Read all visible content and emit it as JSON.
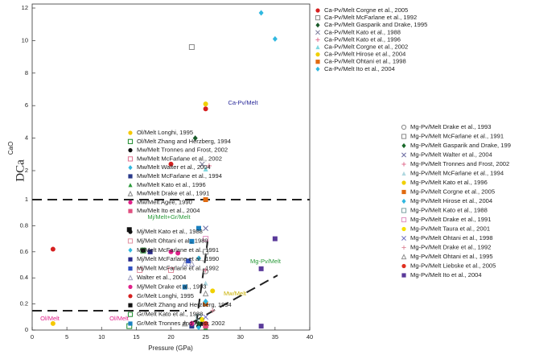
{
  "chart_data": {
    "type": "scatter",
    "x_label": "Pressure (GPa)",
    "y_label": "DCa",
    "y_label_sub": "CaO",
    "xlim": [
      0,
      40
    ],
    "xticks": [
      0,
      5,
      10,
      15,
      20,
      25,
      30,
      35,
      40
    ],
    "ylim": [
      0,
      12
    ],
    "yticks": [
      0,
      0.2,
      0.4,
      0.6,
      0.8,
      1,
      2,
      4,
      6,
      8,
      10,
      12
    ],
    "annotations": [
      "Ca-Pv/Melt",
      "Mj/Melt+Gr/Melt",
      "Mg-Pv/Melt",
      "Ol/Melt",
      "Ol/Melt",
      "Mw/Melt"
    ],
    "series": [
      {
        "name": "Ca-Pv/Melt Corgne et al., 2005",
        "color": "#d62020",
        "marker": "circle",
        "x": [
          20,
          25
        ],
        "values": [
          2.4,
          5.8
        ]
      },
      {
        "name": "Ca-Pv/Melt McFarlane et al., 1992",
        "color": "#888888",
        "marker": "open-square",
        "x": [
          23
        ],
        "values": [
          9.6
        ]
      },
      {
        "name": "Ca-Pv/Melt Gasparik and Drake, 1995",
        "color": "#1a5a2a",
        "marker": "diamond",
        "x": [
          23.5
        ],
        "values": [
          4.0
        ]
      },
      {
        "name": "Ca-Pv/Melt Kato et al., 1988",
        "color": "#7a7a9a",
        "marker": "x",
        "x": [
          24.5
        ],
        "values": [
          2.4
        ]
      },
      {
        "name": "Ca-Pv/Melt Kato et al., 1996",
        "color": "#e07090",
        "marker": "plus",
        "x": [
          25.5
        ],
        "values": [
          2.3
        ]
      },
      {
        "name": "Ca-Pv/Melt Corgne et al., 2002",
        "color": "#7fd8e0",
        "marker": "triangle",
        "x": [
          25
        ],
        "values": [
          2.1
        ]
      },
      {
        "name": "Ca-Pv/Melt Hirose et al., 2004",
        "color": "#f0d000",
        "marker": "circle",
        "x": [
          25
        ],
        "values": [
          6.1
        ]
      },
      {
        "name": "Ca-Pv/Melt Ohtani et al., 1998",
        "color": "#e06a10",
        "marker": "square",
        "x": [
          25
        ],
        "values": [
          1.0
        ]
      },
      {
        "name": "Ca-Pv/Melt Ito et al., 2004",
        "color": "#30b8e0",
        "marker": "diamond",
        "x": [
          33,
          35
        ],
        "values": [
          11.7,
          10.1
        ]
      },
      {
        "name": "Ol/Melt Longhi, 1995",
        "color": "#f5c800",
        "marker": "circle",
        "x": [
          3
        ],
        "values": [
          0.05
        ]
      },
      {
        "name": "Ol/Melt Zhang and Herzberg, 1994",
        "color": "#1a8a2a",
        "marker": "open-square",
        "x": [
          14
        ],
        "values": [
          0.03
        ]
      },
      {
        "name": "Mw/Melt Tronnes and Frost, 2002",
        "color": "#111111",
        "marker": "circle",
        "x": [
          23,
          24,
          24.5
        ],
        "values": [
          0.04,
          0.03,
          0.05
        ]
      },
      {
        "name": "Mw/Melt McFarlane et al., 2002",
        "color": "#e07090",
        "marker": "open-square",
        "x": [
          25
        ],
        "values": [
          0.04
        ]
      },
      {
        "name": "Mw/Melt Walter et al., 2004",
        "color": "#30b8e0",
        "marker": "diamond",
        "x": [
          24
        ],
        "values": [
          0.02
        ]
      },
      {
        "name": "Mw/Melt McFarlane et al., 1994",
        "color": "#2a3a8a",
        "marker": "square",
        "x": [
          23
        ],
        "values": [
          0.03
        ]
      },
      {
        "name": "Mw/Melt Kato et al., 1996",
        "color": "#2a9a3a",
        "marker": "triangle",
        "x": [
          25
        ],
        "values": [
          0.02
        ]
      },
      {
        "name": "Mw/Melt Drake et al., 1991",
        "color": "#888888",
        "marker": "open-triangle",
        "x": [
          22
        ],
        "values": [
          0.05
        ]
      },
      {
        "name": "Mw/Melt Agee, 1990",
        "color": "#e0208a",
        "marker": "circle",
        "x": [
          23
        ],
        "values": [
          0.05
        ]
      },
      {
        "name": "Mw/Melt Ito et al., 2004",
        "color": "#e05080",
        "marker": "square",
        "x": [
          25
        ],
        "values": [
          0.03
        ]
      },
      {
        "name": "Mj/Melt Kato et al., 1988",
        "color": "#111111",
        "marker": "circle",
        "x": [
          16
        ],
        "values": [
          0.61
        ]
      },
      {
        "name": "Mj/Melt Ohtani et al., 1989",
        "color": "#e090a0",
        "marker": "open-square",
        "x": [
          15.5,
          20
        ],
        "values": [
          0.46,
          0.46
        ]
      },
      {
        "name": "Mj/Melt McFarlane et al., 1991",
        "color": "#30b8e0",
        "marker": "diamond",
        "x": [
          24
        ],
        "values": [
          0.55
        ]
      },
      {
        "name": "Mj/Melt McFarlane et al., 1990",
        "color": "#2a2a8a",
        "marker": "square",
        "x": [
          17
        ],
        "values": [
          0.6
        ]
      },
      {
        "name": "Mj/Melt McFarlane et al., 1992",
        "color": "#3050c0",
        "marker": "square",
        "x": [
          22.5
        ],
        "values": [
          0.53
        ]
      },
      {
        "name": "Walter et al., 2004",
        "color": "#a0a0c0",
        "marker": "open-triangle",
        "x": [
          22,
          23
        ],
        "values": [
          0.51,
          0.51
        ]
      },
      {
        "name": "Mj/Melt Drake et al., 1993",
        "color": "#e0208a",
        "marker": "circle",
        "x": [
          20,
          21
        ],
        "values": [
          0.6,
          0.59
        ]
      },
      {
        "name": "Gr/Melt Longhi, 1995",
        "color": "#d62020",
        "marker": "circle",
        "x": [
          3
        ],
        "values": [
          0.62
        ]
      },
      {
        "name": "Gr/Melt Zhang and Herzberg, 1994",
        "color": "#111111",
        "marker": "square",
        "x": [
          14
        ],
        "values": [
          0.77
        ]
      },
      {
        "name": "Gr/Melt Kato et al., 1988",
        "color": "#1a8a2a",
        "marker": "open-square",
        "x": [
          16
        ],
        "values": [
          0.61
        ]
      },
      {
        "name": "Gr/Melt Tronnes and Frost, 2002",
        "color": "#1a80c0",
        "marker": "square",
        "x": [
          22,
          23,
          24
        ],
        "values": [
          0.33,
          0.68,
          0.78
        ]
      },
      {
        "name": "Mg-Pv/Melt Drake et al., 1993",
        "color": "#888888",
        "marker": "open-circle",
        "x": [
          25
        ],
        "values": [
          0.45
        ]
      },
      {
        "name": "Mg-Pv/Melt McFarlane et al., 1991",
        "color": "#888888",
        "marker": "open-square",
        "x": [
          25
        ],
        "values": [
          0.6
        ]
      },
      {
        "name": "Mg-Pv/Melt Gasparik and Drake, 199",
        "color": "#1a6a2a",
        "marker": "diamond",
        "x": [
          24
        ],
        "values": [
          0.05
        ]
      },
      {
        "name": "Mg-Pv/Melt Walter et al., 2004",
        "color": "#6a6aa0",
        "marker": "x",
        "x": [
          25
        ],
        "values": [
          0.78
        ]
      },
      {
        "name": "Mg-Pv/Melt Tronnes and Frost, 2002",
        "color": "#e07090",
        "marker": "plus",
        "x": [
          25
        ],
        "values": [
          0.46
        ]
      },
      {
        "name": "Mg-Pv/Melt McFarlane et al., 1994",
        "color": "#b0d8e0",
        "marker": "triangle",
        "x": [
          25
        ],
        "values": [
          0.36
        ]
      },
      {
        "name": "Mg-Pv/Melt Kato et al., 1996",
        "color": "#f0d000",
        "marker": "circle",
        "x": [
          26
        ],
        "values": [
          0.3
        ]
      },
      {
        "name": "Mg-Pv/Melt Corgne et al., 2005",
        "color": "#e06a10",
        "marker": "square",
        "x": [
          25
        ],
        "values": [
          0.2
        ]
      },
      {
        "name": "Mg-Pv/Melt Hirose et al., 2004",
        "color": "#30b8e0",
        "marker": "diamond",
        "x": [
          25
        ],
        "values": [
          0.22
        ]
      },
      {
        "name": "Mg-Pv/Melt Kato et al., 1988",
        "color": "#7aa0a0",
        "marker": "open-square",
        "x": [
          24
        ],
        "values": [
          0.1
        ]
      },
      {
        "name": "Mg-Pv/Melt Drake et al., 1991",
        "color": "#e090c0",
        "marker": "open-square",
        "x": [
          25
        ],
        "values": [
          0.7
        ]
      },
      {
        "name": "Mg-Pv/Melt Taura et al., 2001",
        "color": "#f5e000",
        "marker": "circle",
        "x": [
          24.5
        ],
        "values": [
          0.08
        ]
      },
      {
        "name": "Mg-Pv/Melt Ohtani et al., 1998",
        "color": "#7070c0",
        "marker": "x",
        "x": [
          25
        ],
        "values": [
          0.1
        ]
      },
      {
        "name": "Mg-Pv/Melt Drake et al., 1992",
        "color": "#e090a0",
        "marker": "plus",
        "x": [
          26
        ],
        "values": [
          0.15
        ]
      },
      {
        "name": "Mg-Pv/Melt Ohtani et al., 1995",
        "color": "#909090",
        "marker": "open-triangle",
        "x": [
          25
        ],
        "values": [
          0.28
        ]
      },
      {
        "name": "Mg-Pv/Melt Liebske et al., 2005",
        "color": "#e03020",
        "marker": "circle",
        "x": [
          25
        ],
        "values": [
          0.05
        ]
      },
      {
        "name": "Mg-Pv/Melt Ito et al., 2004",
        "color": "#5a3a9a",
        "marker": "square",
        "x": [
          33,
          35,
          33
        ],
        "values": [
          0.47,
          0.7,
          0.03
        ]
      }
    ]
  }
}
